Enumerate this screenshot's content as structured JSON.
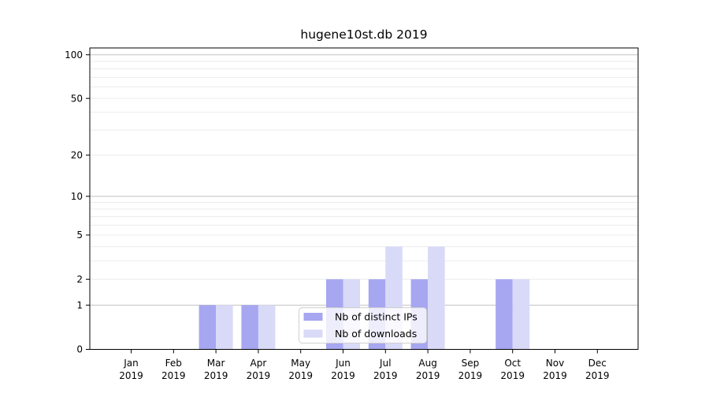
{
  "chart_data": {
    "type": "bar",
    "title": "hugene10st.db 2019",
    "categories": [
      "Jan 2019",
      "Feb 2019",
      "Mar 2019",
      "Apr 2019",
      "May 2019",
      "Jun 2019",
      "Jul 2019",
      "Aug 2019",
      "Sep 2019",
      "Oct 2019",
      "Nov 2019",
      "Dec 2019"
    ],
    "series": [
      {
        "name": "Nb of distinct IPs",
        "color": "#a6a6f1",
        "values": [
          0,
          0,
          1,
          1,
          0,
          2,
          2,
          2,
          0,
          2,
          0,
          0
        ]
      },
      {
        "name": "Nb of downloads",
        "color": "#d9d9f8",
        "values": [
          0,
          0,
          1,
          1,
          0,
          2,
          4,
          4,
          0,
          2,
          0,
          0
        ]
      }
    ],
    "y_axis": {
      "scale": "log10(1+x)",
      "tick_values": [
        0,
        1,
        2,
        5,
        10,
        20,
        50,
        100
      ],
      "tick_labels": [
        "0",
        "1",
        "2",
        "5",
        "10",
        "20",
        "50",
        "100"
      ],
      "range": [
        0,
        112
      ]
    },
    "x_axis": {
      "tick_labels_line1": [
        "Jan",
        "Feb",
        "Mar",
        "Apr",
        "May",
        "Jun",
        "Jul",
        "Aug",
        "Sep",
        "Oct",
        "Nov",
        "Dec"
      ],
      "tick_labels_line2": "2019"
    },
    "grid": {
      "minor_values": [
        2,
        3,
        4,
        5,
        6,
        7,
        8,
        9,
        20,
        30,
        40,
        50,
        60,
        70,
        80,
        90
      ],
      "major_values": [
        1,
        10,
        100
      ],
      "minor_color": "#ececec",
      "major_color": "#c2c2c2"
    },
    "legend": {
      "entries": [
        "Nb of distinct IPs",
        "Nb of downloads"
      ],
      "background": "#ffffff",
      "border_color": "#d0d0d0",
      "position": "bottom-center"
    },
    "colors": {
      "axis": "#000000",
      "text": "#000000"
    }
  }
}
